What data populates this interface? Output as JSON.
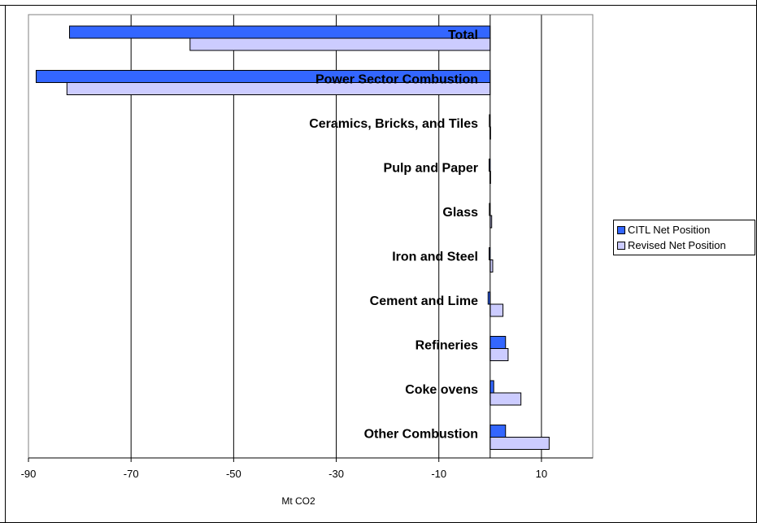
{
  "chart_data": {
    "type": "bar",
    "orientation": "horizontal",
    "title": "",
    "xlabel": "Mt CO2",
    "ylabel": "",
    "xlim": [
      -90,
      20
    ],
    "xticks": [
      -90,
      -70,
      -50,
      -30,
      -10,
      10
    ],
    "grid": true,
    "legend_position": "right",
    "categories": [
      "Total",
      "Power Sector Combustion",
      "Ceramics, Bricks, and Tiles",
      "Pulp and Paper",
      "Glass",
      "Iron and Steel",
      "Cement and Lime",
      "Refineries",
      "Coke ovens",
      "Other Combustion"
    ],
    "series": [
      {
        "name": "CITL Net Position",
        "color": "#3366ff",
        "values": [
          -82,
          -88.5,
          -0.15,
          -0.2,
          -0.15,
          -0.2,
          -0.4,
          3,
          0.7,
          3
        ]
      },
      {
        "name": "Revised Net Position",
        "color": "#ccccff",
        "values": [
          -58.5,
          -82.5,
          -0.05,
          -0.05,
          0.3,
          0.5,
          2.5,
          3.5,
          6,
          11.5
        ]
      }
    ]
  }
}
